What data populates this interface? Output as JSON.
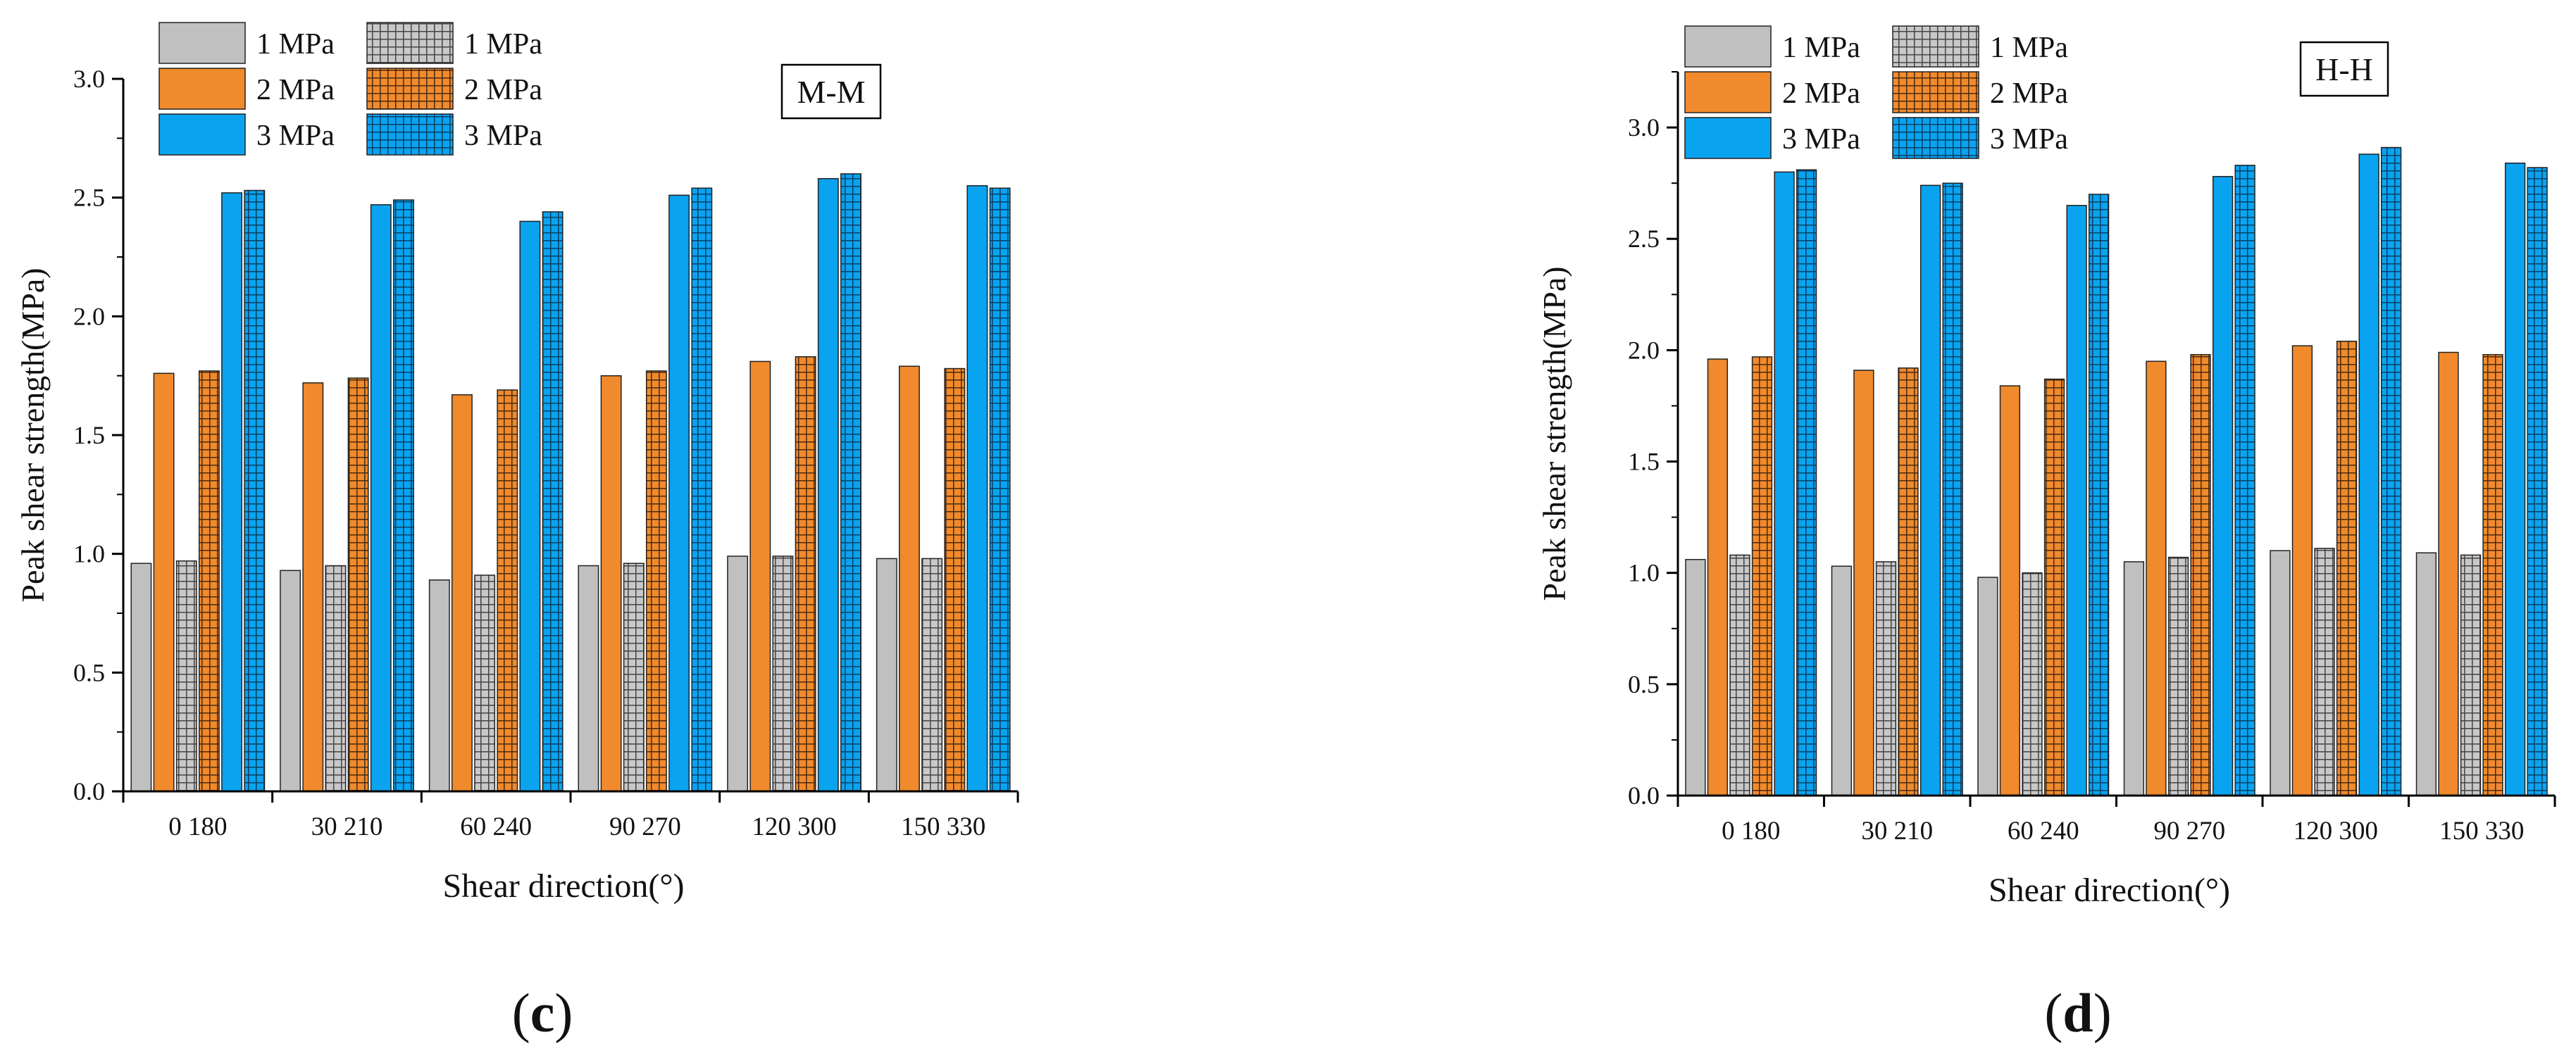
{
  "colors": {
    "series_1mpa": "#c0c0c0",
    "series_2mpa": "#f08a2c",
    "series_3mpa": "#0aa3f0",
    "bar_outline": "#222222",
    "axis": "#000000"
  },
  "panels": [
    {
      "letter_open": "(",
      "letter": "c",
      "letter_close": ")"
    },
    {
      "letter_open": "(",
      "letter": "d",
      "letter_close": ")"
    }
  ],
  "chart_data": [
    {
      "type": "bar",
      "title": "M-M",
      "xlabel": "Shear direction(°)",
      "ylabel": "Peak shear strength(MPa)",
      "ylim": [
        0,
        3.0
      ],
      "yticks": [
        "0.0",
        "0.5",
        "1.0",
        "1.5",
        "2.0",
        "2.5",
        "3.0"
      ],
      "grid": false,
      "legend_position": "top-left",
      "categories": [
        "0  180",
        "30 210",
        "60 240",
        "90 270",
        "120 300",
        "150 330"
      ],
      "series": [
        {
          "name": "1 MPa",
          "pattern": "solid",
          "color_key": "series_1mpa",
          "values": [
            0.96,
            0.93,
            0.89,
            0.95,
            0.99,
            0.98
          ]
        },
        {
          "name": "2 MPa",
          "pattern": "solid",
          "color_key": "series_2mpa",
          "values": [
            1.76,
            1.72,
            1.67,
            1.75,
            1.81,
            1.79
          ]
        },
        {
          "name": "1 MPa",
          "pattern": "grid",
          "color_key": "series_1mpa",
          "values": [
            0.97,
            0.95,
            0.91,
            0.96,
            0.99,
            0.98
          ]
        },
        {
          "name": "2 MPa",
          "pattern": "grid",
          "color_key": "series_2mpa",
          "values": [
            1.77,
            1.74,
            1.69,
            1.77,
            1.83,
            1.78
          ]
        },
        {
          "name": "3 MPa",
          "pattern": "solid",
          "color_key": "series_3mpa",
          "values": [
            2.52,
            2.47,
            2.4,
            2.51,
            2.58,
            2.55
          ]
        },
        {
          "name": "3 MPa",
          "pattern": "grid",
          "color_key": "series_3mpa",
          "values": [
            2.53,
            2.49,
            2.44,
            2.54,
            2.6,
            2.54
          ]
        }
      ]
    },
    {
      "type": "bar",
      "title": "H-H",
      "xlabel": "Shear direction(°)",
      "ylabel": "Peak shear strength(MPa)",
      "ylim": [
        0,
        3.25
      ],
      "yticks": [
        "0.0",
        "0.5",
        "1.0",
        "1.5",
        "2.0",
        "2.5",
        "3.0"
      ],
      "grid": false,
      "legend_position": "top-left",
      "categories": [
        "0  180",
        "30 210",
        "60 240",
        "90 270",
        "120 300",
        "150 330"
      ],
      "series": [
        {
          "name": "1 MPa",
          "pattern": "solid",
          "color_key": "series_1mpa",
          "values": [
            1.06,
            1.03,
            0.98,
            1.05,
            1.1,
            1.09
          ]
        },
        {
          "name": "2 MPa",
          "pattern": "solid",
          "color_key": "series_2mpa",
          "values": [
            1.96,
            1.91,
            1.84,
            1.95,
            2.02,
            1.99
          ]
        },
        {
          "name": "1 MPa",
          "pattern": "grid",
          "color_key": "series_1mpa",
          "values": [
            1.08,
            1.05,
            1.0,
            1.07,
            1.11,
            1.08
          ]
        },
        {
          "name": "2 MPa",
          "pattern": "grid",
          "color_key": "series_2mpa",
          "values": [
            1.97,
            1.92,
            1.87,
            1.98,
            2.04,
            1.98
          ]
        },
        {
          "name": "3 MPa",
          "pattern": "solid",
          "color_key": "series_3mpa",
          "values": [
            2.8,
            2.74,
            2.65,
            2.78,
            2.88,
            2.84
          ]
        },
        {
          "name": "3 MPa",
          "pattern": "grid",
          "color_key": "series_3mpa",
          "values": [
            2.81,
            2.75,
            2.7,
            2.83,
            2.91,
            2.82
          ]
        }
      ]
    }
  ]
}
